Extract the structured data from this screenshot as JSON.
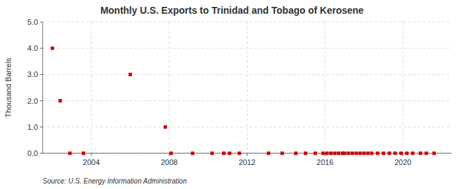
{
  "chart_data": {
    "type": "scatter",
    "title": "Monthly U.S. Exports to Trinidad and Tobago of Kerosene",
    "ylabel": "Thousand Barrels",
    "annotation": "Source: U.S. Energy Information Administration",
    "x": [
      2002.0,
      2002.4,
      2002.9,
      2003.6,
      2006.0,
      2007.8,
      2008.1,
      2009.2,
      2010.2,
      2010.8,
      2011.1,
      2011.6,
      2013.1,
      2013.8,
      2014.5,
      2015.0,
      2015.5,
      2015.9,
      2016.1,
      2016.3,
      2016.5,
      2016.7,
      2016.9,
      2017.0,
      2017.2,
      2017.4,
      2017.6,
      2017.8,
      2018.0,
      2018.2,
      2018.4,
      2018.7,
      2019.0,
      2019.3,
      2019.6,
      2019.9,
      2020.2,
      2020.5,
      2020.9,
      2021.2,
      2021.6
    ],
    "values": [
      4.0,
      2.0,
      0.0,
      0.0,
      3.0,
      1.0,
      0.0,
      0.0,
      0.0,
      0.0,
      0.0,
      0.0,
      0.0,
      0.0,
      0.0,
      0.0,
      0.0,
      0.0,
      0.0,
      0.0,
      0.0,
      0.0,
      0.0,
      0.0,
      0.0,
      0.0,
      0.0,
      0.0,
      0.0,
      0.0,
      0.0,
      0.0,
      0.0,
      0.0,
      0.0,
      0.0,
      0.0,
      0.0,
      0.0,
      0.0,
      0.0
    ],
    "color": "#cc0000",
    "marker": "square",
    "xlim": [
      2001.5,
      2022.5
    ],
    "xticks": [
      2004,
      2008,
      2012,
      2016,
      2020
    ],
    "ylim": [
      0.0,
      5.0
    ],
    "yticks": [
      {
        "value": 0.0,
        "label": "0.0"
      },
      {
        "value": 1.0,
        "label": "1.0"
      },
      {
        "value": 2.0,
        "label": "2.0"
      },
      {
        "value": 3.0,
        "label": "3.0"
      },
      {
        "value": 4.0,
        "label": "4.0"
      },
      {
        "value": 5.0,
        "label": "5.0"
      }
    ],
    "grid": true
  }
}
